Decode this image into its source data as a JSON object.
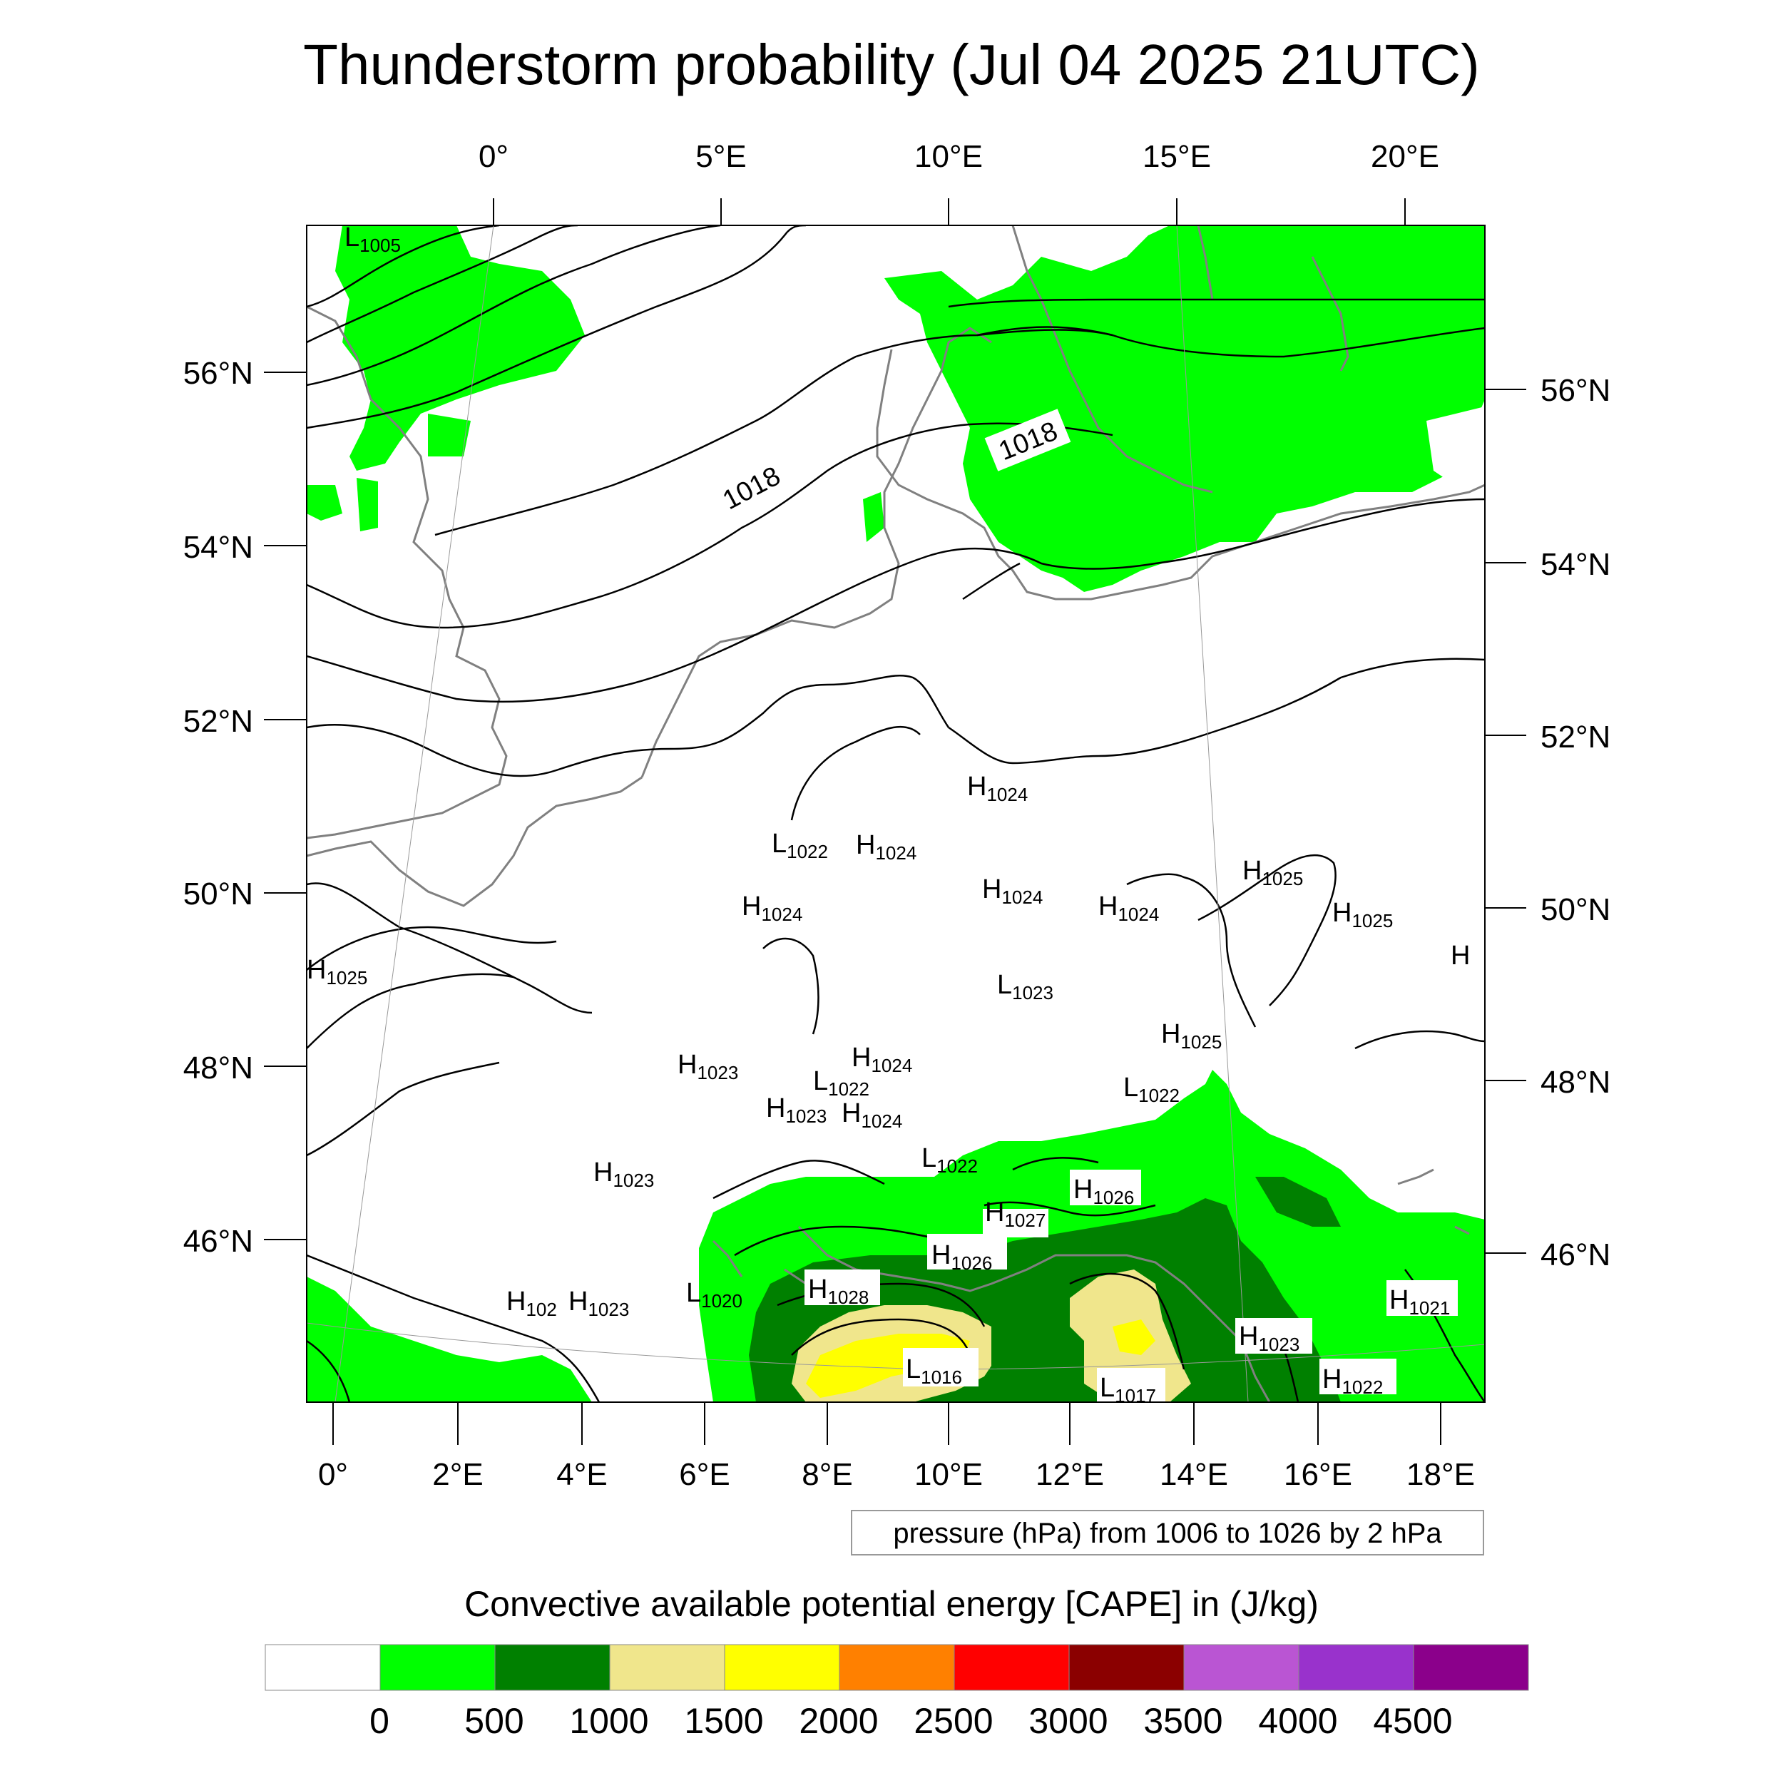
{
  "title": "Thunderstorm probability (Jul 04 2025 21UTC)",
  "top_lon_labels": [
    "0°",
    "5°E",
    "10°E",
    "15°E",
    "20°E"
  ],
  "bottom_lon_labels": [
    "0°",
    "2°E",
    "4°E",
    "6°E",
    "8°E",
    "10°E",
    "12°E",
    "14°E",
    "16°E",
    "18°E"
  ],
  "left_lat_labels": [
    "56°N",
    "54°N",
    "52°N",
    "50°N",
    "48°N",
    "46°N"
  ],
  "right_lat_labels": [
    "56°N",
    "54°N",
    "52°N",
    "50°N",
    "48°N",
    "46°N"
  ],
  "isobar_labels": [
    "1018",
    "1018"
  ],
  "pressure_centers": [
    {
      "t": "L",
      "v": "1005"
    },
    {
      "t": "H",
      "v": "1024"
    },
    {
      "t": "L",
      "v": "1022"
    },
    {
      "t": "H",
      "v": "1024"
    },
    {
      "t": "H",
      "v": "1024"
    },
    {
      "t": "H",
      "v": "1024"
    },
    {
      "t": "H",
      "v": "1024"
    },
    {
      "t": "H",
      "v": "1025"
    },
    {
      "t": "H",
      "v": "1025"
    },
    {
      "t": "H",
      "v": ""
    },
    {
      "t": "H",
      "v": "1025"
    },
    {
      "t": "L",
      "v": "1023"
    },
    {
      "t": "H",
      "v": "1025"
    },
    {
      "t": "H",
      "v": "1023"
    },
    {
      "t": "H",
      "v": "1024"
    },
    {
      "t": "L",
      "v": "1022"
    },
    {
      "t": "H",
      "v": "1023"
    },
    {
      "t": "H",
      "v": "1024"
    },
    {
      "t": "L",
      "v": "1022"
    },
    {
      "t": "L",
      "v": "1022"
    },
    {
      "t": "H",
      "v": "1023"
    },
    {
      "t": "H",
      "v": "1026"
    },
    {
      "t": "H",
      "v": "1027"
    },
    {
      "t": "H",
      "v": "1026"
    },
    {
      "t": "L",
      "v": "1020"
    },
    {
      "t": "H",
      "v": "1028"
    },
    {
      "t": "H",
      "v": "102"
    },
    {
      "t": "H",
      "v": "1023"
    },
    {
      "t": "H",
      "v": "1021"
    },
    {
      "t": "L",
      "v": "1016"
    },
    {
      "t": "H",
      "v": "1023"
    },
    {
      "t": "L",
      "v": "1017"
    },
    {
      "t": "H",
      "v": "1022"
    }
  ],
  "pressure_note": "pressure (hPa) from 1006 to 1026 by 2 hPa",
  "colorbar": {
    "title": "Convective available potential energy [CAPE] in (J/kg)",
    "colors": [
      "#ffffff",
      "#00ff00",
      "#008000",
      "#f0e68c",
      "#ffff00",
      "#ff8000",
      "#ff0000",
      "#8b0000",
      "#ba55d3",
      "#9932cc",
      "#8b008b"
    ],
    "ticks": [
      "0",
      "500",
      "1000",
      "1500",
      "2000",
      "2500",
      "3000",
      "3500",
      "4000",
      "4500"
    ]
  },
  "colors": {
    "cape_0_500": "#00ff00",
    "cape_500_1000": "#008000",
    "cape_1000_1500": "#f0e68c",
    "cape_1500_2000": "#ffff00",
    "coastline": "#808080",
    "isobar": "#000000"
  }
}
